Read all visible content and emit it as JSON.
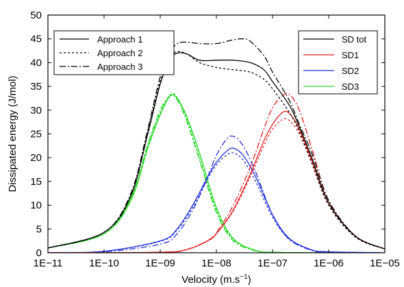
{
  "chart_data": {
    "type": "line",
    "title": "",
    "xlabel": "Velocity (m.s",
    "xlabel_superscript": "−1",
    "xlabel_close": ")",
    "ylabel": "Dissipated energy (J/mol)",
    "x_scale": "log",
    "xlim": [
      1e-11,
      1e-05
    ],
    "ylim": [
      0,
      50
    ],
    "grid": false,
    "x_ticks": [
      {
        "value": 1e-11,
        "label": "1E−11"
      },
      {
        "value": 1e-10,
        "label": "1E−10"
      },
      {
        "value": 1e-09,
        "label": "1E−09"
      },
      {
        "value": 1e-08,
        "label": "1E−08"
      },
      {
        "value": 1e-07,
        "label": "1E−07"
      },
      {
        "value": 1e-06,
        "label": "1E−06"
      },
      {
        "value": 1e-05,
        "label": "1E−05"
      }
    ],
    "y_ticks": [
      0,
      5,
      10,
      15,
      20,
      25,
      30,
      35,
      40,
      45,
      50
    ],
    "legends": [
      {
        "placement": "top-left",
        "entries": [
          {
            "label": "Approach 1",
            "color": "#000000",
            "dash": "solid"
          },
          {
            "label": "Approach 2",
            "color": "#000000",
            "dash": "dotted"
          },
          {
            "label": "Approach 3",
            "color": "#000000",
            "dash": "dashdot"
          }
        ]
      },
      {
        "placement": "top-right",
        "entries": [
          {
            "label": "SD tot",
            "color": "#000000",
            "dash": "solid"
          },
          {
            "label": "SD1",
            "color": "#e41a1c",
            "dash": "solid"
          },
          {
            "label": "SD2",
            "color": "#1f2fd6",
            "dash": "solid"
          },
          {
            "label": "SD3",
            "color": "#22d622",
            "dash": "solid"
          }
        ]
      }
    ],
    "series": [
      {
        "component": "SD3",
        "approach": 1,
        "color": "#22d622",
        "dash": "solid",
        "x": [
          1e-11,
          1e-10,
          3e-10,
          6e-10,
          1e-09,
          1.5e-09,
          2e-09,
          3e-09,
          5e-09,
          1e-08,
          2e-08,
          5e-08,
          1e-07,
          1e-06
        ],
        "y": [
          1.0,
          4.0,
          11.0,
          22.0,
          29.0,
          33.0,
          32.5,
          28.5,
          21.0,
          9.5,
          3.0,
          0.5,
          0.1,
          0.0
        ]
      },
      {
        "component": "SD3",
        "approach": 2,
        "color": "#22d622",
        "dash": "dotted",
        "x": [
          1e-11,
          1e-10,
          3e-10,
          6e-10,
          1e-09,
          1.5e-09,
          2e-09,
          3e-09,
          5e-09,
          1e-08,
          2e-08,
          5e-08,
          1e-07,
          1e-06
        ],
        "y": [
          1.0,
          4.0,
          11.5,
          22.5,
          29.5,
          33.2,
          32.7,
          28.0,
          20.0,
          9.0,
          2.8,
          0.5,
          0.1,
          0.0
        ]
      },
      {
        "component": "SD3",
        "approach": 3,
        "color": "#22d622",
        "dash": "dashdot",
        "x": [
          1e-11,
          1e-10,
          3e-10,
          6e-10,
          1e-09,
          1.5e-09,
          2e-09,
          3e-09,
          5e-09,
          1e-08,
          2e-08,
          5e-08,
          1e-07,
          1e-06
        ],
        "y": [
          1.0,
          4.0,
          11.5,
          22.8,
          30.0,
          33.0,
          32.2,
          27.5,
          19.5,
          8.5,
          2.5,
          0.4,
          0.1,
          0.0
        ]
      },
      {
        "component": "SD2",
        "approach": 1,
        "color": "#1f2fd6",
        "dash": "solid",
        "x": [
          1e-11,
          1e-10,
          1e-09,
          2e-09,
          4e-09,
          7e-09,
          1e-08,
          1.5e-08,
          2e-08,
          3e-08,
          5e-08,
          1e-07,
          2e-07,
          5e-07,
          1e-06,
          1e-05
        ],
        "y": [
          0.0,
          0.3,
          2.5,
          5.0,
          10.5,
          16.0,
          19.0,
          21.3,
          22.0,
          20.5,
          16.0,
          8.0,
          3.0,
          0.6,
          0.2,
          0.0
        ]
      },
      {
        "component": "SD2",
        "approach": 2,
        "color": "#1f2fd6",
        "dash": "dotted",
        "x": [
          1e-11,
          1e-10,
          1e-09,
          2e-09,
          4e-09,
          7e-09,
          1e-08,
          1.5e-08,
          2e-08,
          3e-08,
          5e-08,
          1e-07,
          2e-07,
          5e-07,
          1e-06,
          1e-05
        ],
        "y": [
          0.0,
          0.3,
          2.4,
          4.8,
          10.0,
          15.5,
          18.5,
          20.5,
          21.0,
          19.5,
          15.0,
          7.5,
          2.8,
          0.6,
          0.2,
          0.0
        ]
      },
      {
        "component": "SD2",
        "approach": 3,
        "color": "#1f2fd6",
        "dash": "dashdot",
        "x": [
          1e-11,
          1e-10,
          1e-09,
          2e-09,
          4e-09,
          7e-09,
          1e-08,
          1.5e-08,
          2e-08,
          3e-08,
          5e-08,
          1e-07,
          2e-07,
          5e-07,
          1e-06,
          1e-05
        ],
        "y": [
          0.0,
          0.2,
          1.8,
          4.0,
          9.5,
          16.0,
          20.5,
          23.8,
          24.5,
          22.5,
          17.0,
          8.0,
          2.8,
          0.5,
          0.1,
          0.0
        ]
      },
      {
        "component": "SD1",
        "approach": 1,
        "color": "#e41a1c",
        "dash": "solid",
        "x": [
          1e-11,
          1e-09,
          3e-09,
          7e-09,
          1e-08,
          2e-08,
          4e-08,
          7e-08,
          1e-07,
          1.5e-07,
          2e-07,
          3e-07,
          5e-07,
          1e-06,
          3e-06,
          1e-05
        ],
        "y": [
          0.0,
          0.1,
          0.7,
          2.5,
          4.0,
          9.0,
          16.5,
          23.5,
          27.0,
          29.5,
          29.3,
          26.0,
          19.5,
          10.5,
          3.5,
          0.8
        ]
      },
      {
        "component": "SD1",
        "approach": 2,
        "color": "#e41a1c",
        "dash": "dotted",
        "x": [
          1e-11,
          1e-09,
          3e-09,
          7e-09,
          1e-08,
          2e-08,
          4e-08,
          7e-08,
          1e-07,
          1.5e-07,
          2e-07,
          3e-07,
          5e-07,
          1e-06,
          3e-06,
          1e-05
        ],
        "y": [
          0.0,
          0.1,
          0.7,
          2.5,
          4.0,
          8.8,
          16.0,
          22.5,
          26.0,
          28.0,
          27.8,
          25.0,
          18.8,
          10.0,
          3.3,
          0.8
        ]
      },
      {
        "component": "SD1",
        "approach": 3,
        "color": "#e41a1c",
        "dash": "dashdot",
        "x": [
          1e-11,
          1e-09,
          3e-09,
          7e-09,
          1e-08,
          2e-08,
          4e-08,
          7e-08,
          1e-07,
          1.5e-07,
          2e-07,
          3e-07,
          5e-07,
          1e-06,
          3e-06,
          1e-05
        ],
        "y": [
          0.0,
          0.1,
          0.7,
          2.6,
          4.2,
          10.0,
          18.0,
          26.0,
          30.5,
          33.0,
          33.3,
          30.0,
          22.0,
          11.0,
          3.5,
          0.8
        ]
      },
      {
        "component": "SD tot",
        "approach": 1,
        "color": "#000000",
        "dash": "solid",
        "x": [
          1e-11,
          1e-10,
          3e-10,
          6e-10,
          1e-09,
          1.5e-09,
          2e-09,
          3e-09,
          5e-09,
          1e-08,
          2e-08,
          4e-08,
          7e-08,
          1e-07,
          2e-07,
          3e-07,
          5e-07,
          1e-06,
          3e-06,
          1e-05
        ],
        "y": [
          1.0,
          4.3,
          12.0,
          25.0,
          35.5,
          40.5,
          42.0,
          41.8,
          40.5,
          40.5,
          40.5,
          40.0,
          38.5,
          36.0,
          31.0,
          26.5,
          20.0,
          10.5,
          3.5,
          0.8
        ]
      },
      {
        "component": "SD tot",
        "approach": 2,
        "color": "#000000",
        "dash": "dotted",
        "x": [
          1e-11,
          1e-10,
          3e-10,
          6e-10,
          1e-09,
          1.5e-09,
          2e-09,
          3e-09,
          5e-09,
          1e-08,
          2e-08,
          4e-08,
          7e-08,
          1e-07,
          2e-07,
          3e-07,
          5e-07,
          1e-06,
          3e-06,
          1e-05
        ],
        "y": [
          1.0,
          4.3,
          12.0,
          25.5,
          36.0,
          41.0,
          42.3,
          41.8,
          40.0,
          39.0,
          38.5,
          38.0,
          36.5,
          34.5,
          29.5,
          25.5,
          19.0,
          10.0,
          3.3,
          0.8
        ]
      },
      {
        "component": "SD tot",
        "approach": 3,
        "color": "#000000",
        "dash": "dashdot",
        "x": [
          1e-11,
          1e-10,
          3e-10,
          6e-10,
          1e-09,
          1.5e-09,
          2e-09,
          3e-09,
          5e-09,
          1e-08,
          2e-08,
          3e-08,
          4e-08,
          7e-08,
          1e-07,
          2e-07,
          3e-07,
          5e-07,
          1e-06,
          3e-06,
          1e-05
        ],
        "y": [
          1.0,
          4.3,
          12.5,
          26.0,
          37.0,
          42.0,
          44.0,
          44.3,
          44.0,
          44.0,
          44.8,
          45.0,
          44.5,
          41.5,
          38.0,
          32.0,
          27.0,
          21.0,
          11.0,
          3.5,
          0.8
        ]
      }
    ]
  }
}
